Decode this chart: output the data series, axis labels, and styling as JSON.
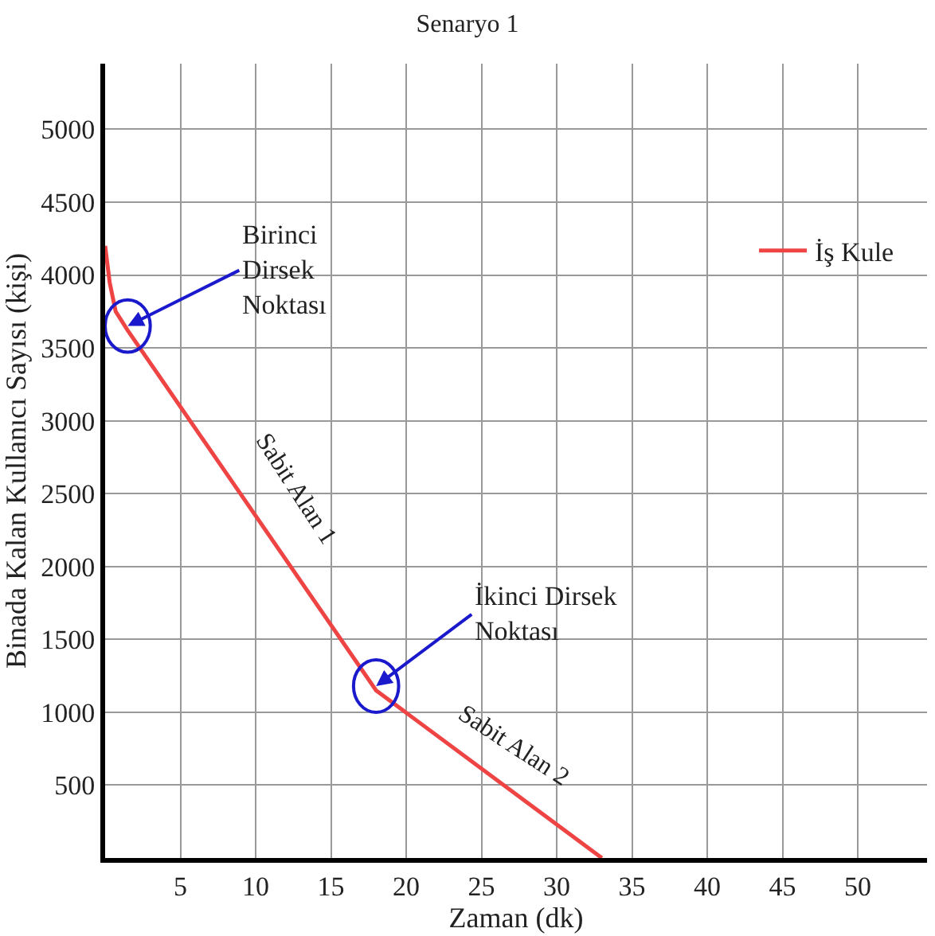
{
  "chart_data": {
    "type": "line",
    "title": "Senaryo 1",
    "xlabel": "Zaman (dk)",
    "ylabel": "Binada Kalan Kullanıcı Sayısı (kişi)",
    "x": [
      0,
      0.3,
      0.7,
      1.5,
      18,
      33
    ],
    "series": [
      {
        "name": "İş Kule",
        "color": "#ee4444",
        "values": [
          4200,
          3950,
          3750,
          3620,
          1150,
          0
        ]
      }
    ],
    "xlim": [
      0,
      54.6
    ],
    "ylim": [
      0,
      5450
    ],
    "xticks": [
      5,
      10,
      15,
      20,
      25,
      30,
      35,
      40,
      45,
      50
    ],
    "yticks": [
      500,
      1000,
      1500,
      2000,
      2500,
      3000,
      3500,
      4000,
      4500,
      5000
    ],
    "grid": true,
    "legend": "top right",
    "marker": "none",
    "line_style": "solid",
    "annotations": [
      {
        "text": "Birinci\nDirsek\nNoktası",
        "x": 1.5,
        "y": 3650
      },
      {
        "text": "İkinci Dirsek\nNoktası",
        "x": 18,
        "y": 1180
      },
      {
        "text": "Sabit Alan 1",
        "x": 9.5,
        "y": 2420
      },
      {
        "text": "Sabit Alan 2",
        "x": 25,
        "y": 610
      }
    ]
  }
}
